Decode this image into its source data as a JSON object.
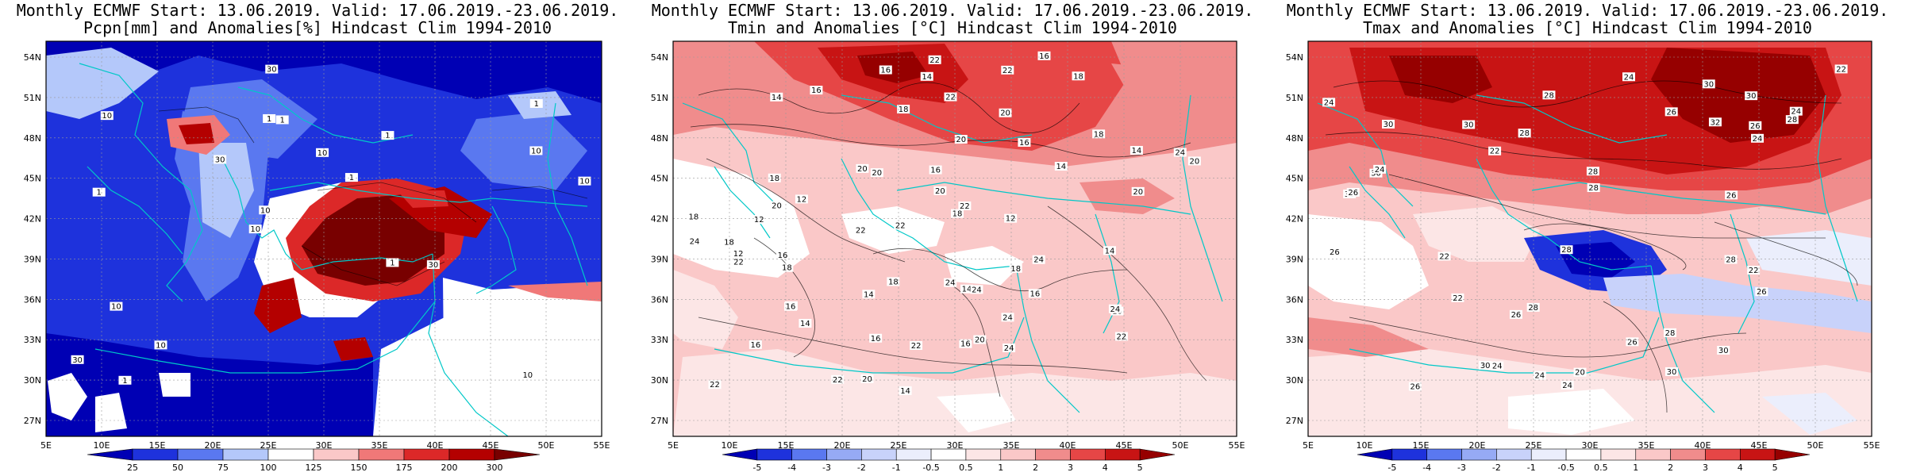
{
  "panels": [
    {
      "title_line1": "Monthly ECMWF Start: 13.06.2019. Valid: 17.06.2019.-23.06.2019.",
      "title_line2": "Pcpn[mm] and Anomalies[%] Hindcast Clim 1994-2010",
      "colorbar": {
        "labels": [
          "25",
          "50",
          "75",
          "100",
          "125",
          "150",
          "175",
          "200",
          "300"
        ],
        "colors": [
          "#0000b4",
          "#1e32dc",
          "#5a78f0",
          "#b4c8fa",
          "#ffffff",
          "#fac8c8",
          "#f07878",
          "#dc2828",
          "#b40000",
          "#780000"
        ]
      },
      "contour_labels": [
        "10",
        "1",
        "1",
        "10",
        "1",
        "1",
        "1",
        "10",
        "10",
        "30",
        "30",
        "10",
        "1",
        "1",
        "30",
        "10",
        "30",
        "10",
        "1",
        "10",
        "10"
      ]
    },
    {
      "title_line1": "Monthly ECMWF Start: 13.06.2019. Valid: 17.06.2019.-23.06.2019.",
      "title_line2": "Tmin and Anomalies [°C] Hindcast Clim 1994-2010",
      "colorbar": {
        "labels": [
          "-5",
          "-4",
          "-3",
          "-2",
          "-1",
          "-0.5",
          "0.5",
          "1",
          "2",
          "3",
          "4",
          "5"
        ],
        "colors": [
          "#0000b4",
          "#1e32dc",
          "#5a78f0",
          "#96aaf5",
          "#c8d2fa",
          "#ebeefc",
          "#ffffff",
          "#fce6e6",
          "#fac8c8",
          "#f08c8c",
          "#e64646",
          "#c81414",
          "#960000"
        ]
      },
      "contour_labels": [
        "16",
        "18",
        "16",
        "18",
        "14",
        "12",
        "18",
        "20",
        "14",
        "14",
        "18",
        "22",
        "16",
        "18",
        "14",
        "16",
        "22",
        "18",
        "16",
        "20",
        "24",
        "14",
        "18",
        "22",
        "20",
        "16",
        "12",
        "22",
        "20",
        "24",
        "18",
        "14",
        "20",
        "24",
        "16",
        "22",
        "24",
        "12",
        "16",
        "14",
        "20",
        "22",
        "22",
        "16",
        "24",
        "20",
        "18",
        "16",
        "14",
        "24",
        "20",
        "22",
        "16",
        "20",
        "22",
        "24",
        "20",
        "24",
        "14",
        "12",
        "22",
        "16",
        "20",
        "22",
        "18"
      ]
    },
    {
      "title_line1": "Monthly ECMWF Start: 13.06.2019. Valid: 17.06.2019.-23.06.2019.",
      "title_line2": "Tmax and Anomalies [°C] Hindcast Clim 1994-2010",
      "colorbar": {
        "labels": [
          "-5",
          "-4",
          "-3",
          "-2",
          "-1",
          "-0.5",
          "0.5",
          "1",
          "2",
          "3",
          "4",
          "5"
        ],
        "colors": [
          "#0000b4",
          "#1e32dc",
          "#5a78f0",
          "#96aaf5",
          "#c8d2fa",
          "#ebeefc",
          "#ffffff",
          "#fce6e6",
          "#fac8c8",
          "#f08c8c",
          "#e64646",
          "#c81414",
          "#960000"
        ]
      },
      "contour_labels": [
        "26",
        "28",
        "24",
        "26",
        "28",
        "30",
        "22",
        "24",
        "26",
        "30",
        "30",
        "32",
        "28",
        "28",
        "24",
        "30",
        "22",
        "26",
        "30",
        "28",
        "24",
        "28",
        "24",
        "26",
        "22",
        "20",
        "28",
        "22",
        "24",
        "26",
        "30",
        "30",
        "24",
        "26",
        "26",
        "28",
        "22",
        "30",
        "30",
        "28",
        "26",
        "24"
      ]
    }
  ],
  "axes": {
    "lat_labels": [
      "54N",
      "51N",
      "48N",
      "45N",
      "42N",
      "39N",
      "36N",
      "33N",
      "30N",
      "27N"
    ],
    "lon_labels": [
      "5E",
      "10E",
      "15E",
      "20E",
      "25E",
      "30E",
      "35E",
      "40E",
      "45E",
      "50E",
      "55E"
    ]
  }
}
